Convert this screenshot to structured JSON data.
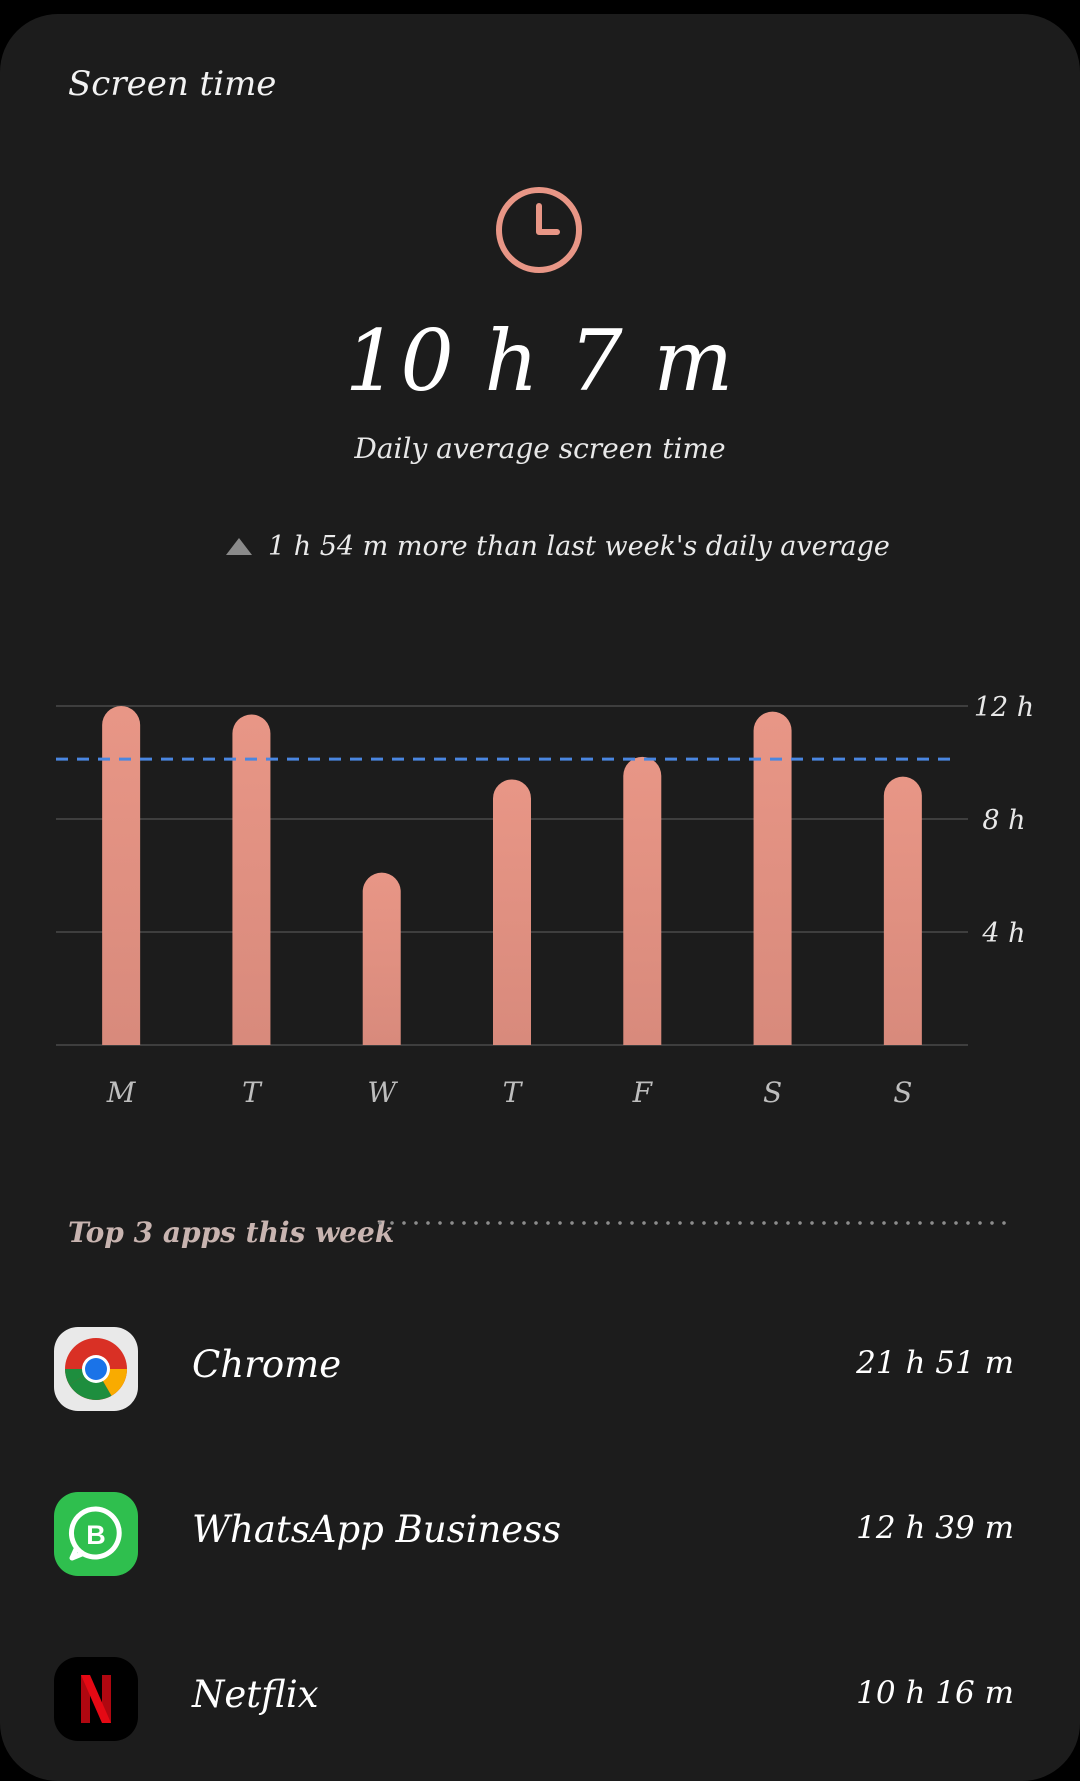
{
  "header": {
    "title": "Screen time"
  },
  "summary": {
    "clock_icon": "clock-icon",
    "total": "10 h 7 m",
    "subtitle": "Daily average screen time",
    "comparison": "1 h 54 m more than last week's daily average",
    "comparison_icon": "triangle-up-icon"
  },
  "chart_data": {
    "type": "bar",
    "categories": [
      "M",
      "T",
      "W",
      "T",
      "F",
      "S",
      "S"
    ],
    "values": [
      12.0,
      11.7,
      6.1,
      9.4,
      10.2,
      11.8,
      9.5
    ],
    "average": 10.12,
    "ylim": [
      0,
      12
    ],
    "y_ticks": [
      {
        "value": 12,
        "label": "12 h"
      },
      {
        "value": 8,
        "label": "8 h"
      },
      {
        "value": 4,
        "label": "4 h"
      }
    ],
    "grid": true,
    "bar_color": "#e89686",
    "average_line_color": "#4a86e0"
  },
  "top_apps": {
    "header": "Top 3 apps this week",
    "items": [
      {
        "name": "Chrome",
        "time": "21 h 51 m",
        "icon": "chrome-icon"
      },
      {
        "name": "WhatsApp Business",
        "time": "12 h 39 m",
        "icon": "whatsapp-business-icon"
      },
      {
        "name": "Netflix",
        "time": "10 h 16 m",
        "icon": "netflix-icon"
      }
    ]
  },
  "colors": {
    "background": "#1c1c1c",
    "accent": "#e89686"
  }
}
